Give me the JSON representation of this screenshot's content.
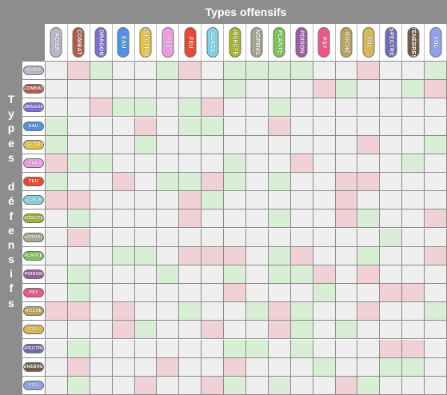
{
  "header": {
    "offensive_title": "Types offensifs"
  },
  "defensive_title_letters": [
    "T",
    "y",
    "p",
    "e",
    "s",
    "",
    "d",
    "é",
    "f",
    "e",
    "n",
    "s",
    "i",
    "f",
    "s"
  ],
  "types": [
    {
      "label": "ACIER",
      "color": "#b8b8cc"
    },
    {
      "label": "COMBAT",
      "color": "#b55a4a"
    },
    {
      "label": "DRAGON",
      "color": "#7b6fd6"
    },
    {
      "label": "EAU",
      "color": "#4f93e8"
    },
    {
      "label": "ÉLECTRIK",
      "color": "#e8c43b"
    },
    {
      "label": "FÉE",
      "color": "#ef9de3"
    },
    {
      "label": "FEU",
      "color": "#e8492f"
    },
    {
      "label": "GLACE",
      "color": "#7fd5e6"
    },
    {
      "label": "INSECTE",
      "color": "#a8b820"
    },
    {
      "label": "NORMAL",
      "color": "#aaa78f"
    },
    {
      "label": "PLANTE",
      "color": "#79c850"
    },
    {
      "label": "POISON",
      "color": "#a05ba6"
    },
    {
      "label": "PSY",
      "color": "#f0558a"
    },
    {
      "label": "ROCHE",
      "color": "#bba55b"
    },
    {
      "label": "SOL",
      "color": "#d8b855"
    },
    {
      "label": "SPECTRE",
      "color": "#6c6ab8"
    },
    {
      "label": "TÉNÈBRES",
      "color": "#725a48"
    },
    {
      "label": "VOL",
      "color": "#8ea2ee"
    }
  ],
  "legend_colors": {
    "neutral": "#efefef",
    "green": "#d8efd6",
    "red": "#f0d2d6"
  },
  "matrix": [
    "NRGNNGRNGGGGNNRNNG",
    "NNNNNNNNGNNNRGNNGR",
    "NNRGGNGRNNGNNNNNNN",
    "GNNNRNGGNNRNNNNNNN",
    "GNNNGNNNNNNNNNRNNG",
    "RGGNNNNNGNNRNNNNGN",
    "GNNRNGGRGNGNNRRNNN",
    "RRNNNNRGNNNNNRNNNN",
    "NGNNNNRNNNGNNRGNNR",
    "NRNNNNNNNNNNNNNGNN",
    "NNNGGNRRRNGRNNGNNR",
    "NGNNNGNNGNGGRNRNNN",
    "NGNNNNNNRNNNGNNRRN",
    "RRNRNNGNNGRGNNRNNG",
    "NNNRGNNRNNRGNGNNNN",
    "NGNNNNNNGGNGNNNRRN",
    "NRNNNRNNRNNNGNNGGN",
    "NGNNRNNRGNGNNRGNNN"
  ]
}
